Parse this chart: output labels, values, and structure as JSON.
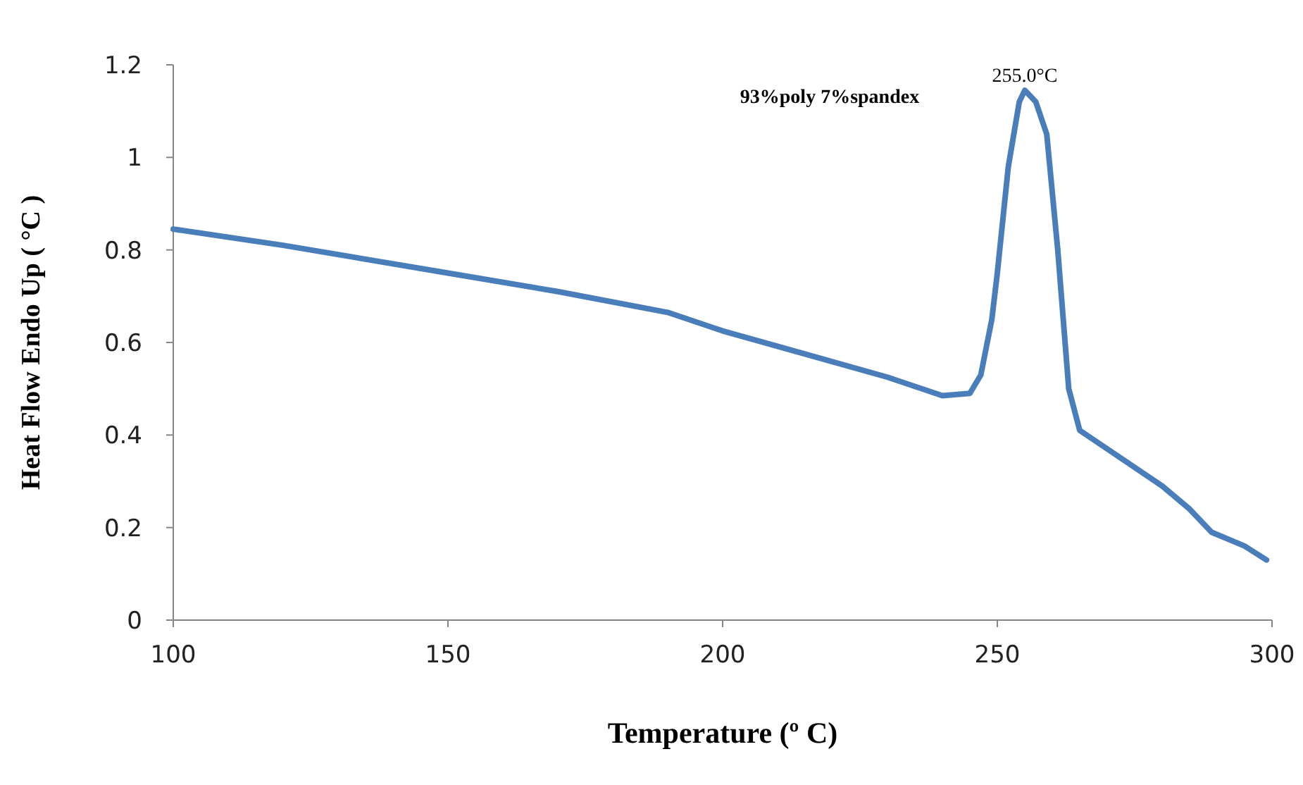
{
  "chart_data": {
    "type": "line",
    "xlabel": "Temperature (º C)",
    "ylabel": "Heat Flow Endo Up ( °C )",
    "xlim": [
      100,
      300
    ],
    "xticks": [
      100,
      150,
      200,
      250,
      300
    ],
    "ylim": [
      0,
      1.2
    ],
    "yticks": [
      0,
      0.2,
      0.4,
      0.6,
      0.8,
      1,
      1.2
    ],
    "grid": false,
    "marker": "none",
    "line_style": "solid",
    "series": [
      {
        "color": "#4a7ebb",
        "x": [
          100,
          120,
          150,
          170,
          190,
          200,
          215,
          230,
          240,
          245,
          247,
          249,
          250,
          252,
          254,
          255,
          257,
          259,
          261,
          263,
          265,
          270,
          280,
          285,
          289,
          295,
          299
        ],
        "values": [
          0.845,
          0.81,
          0.75,
          0.71,
          0.665,
          0.625,
          0.575,
          0.525,
          0.485,
          0.49,
          0.53,
          0.65,
          0.75,
          0.98,
          1.12,
          1.145,
          1.12,
          1.05,
          0.8,
          0.5,
          0.41,
          0.37,
          0.29,
          0.24,
          0.19,
          0.16,
          0.13
        ]
      }
    ],
    "annotations": [
      {
        "text": "255.0°C",
        "x": 255,
        "y": 1.145
      },
      "93%poly 7%spandex"
    ]
  }
}
